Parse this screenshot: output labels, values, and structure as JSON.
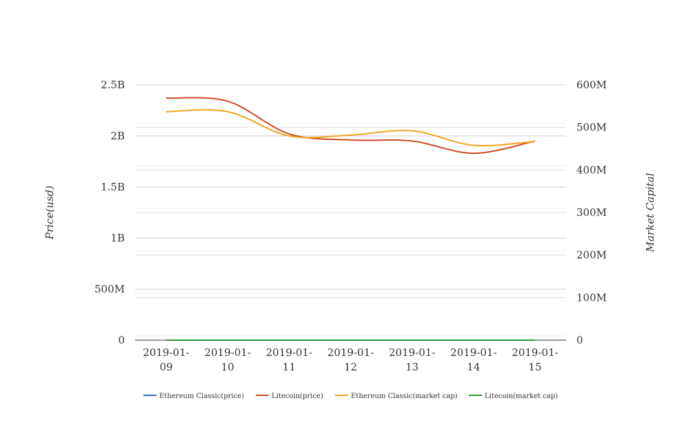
{
  "chart_data": {
    "type": "line",
    "title": "",
    "categories": [
      "2019-01-09",
      "2019-01-10",
      "2019-01-11",
      "2019-01-12",
      "2019-01-13",
      "2019-01-14",
      "2019-01-15"
    ],
    "category_labels": [
      [
        "2019-01-",
        "09"
      ],
      [
        "2019-01-",
        "10"
      ],
      [
        "2019-01-",
        "11"
      ],
      [
        "2019-01-",
        "12"
      ],
      [
        "2019-01-",
        "13"
      ],
      [
        "2019-01-",
        "14"
      ],
      [
        "2019-01-",
        "15"
      ]
    ],
    "y_left": {
      "label": "Price(usd)",
      "min": 0,
      "max": 2500000000,
      "ticks": [
        0,
        500000000,
        1000000000,
        1500000000,
        2000000000,
        2500000000
      ],
      "tick_labels": [
        "0",
        "500M",
        "1B",
        "1.5B",
        "2B",
        "2.5B"
      ]
    },
    "y_right": {
      "label": "Market Capital",
      "min": 0,
      "max": 600000000,
      "ticks": [
        0,
        100000000,
        200000000,
        300000000,
        400000000,
        500000000,
        600000000
      ],
      "tick_labels": [
        "0",
        "100M",
        "200M",
        "300M",
        "400M",
        "500M",
        "600M"
      ]
    },
    "grid": true,
    "legend_position": "bottom",
    "series": [
      {
        "name": "Ethereum Classic(price)",
        "axis": "left",
        "color": "#2e6bc6",
        "values": [
          4.7,
          4.7,
          4.5,
          4.5,
          4.6,
          4.4,
          4.5
        ]
      },
      {
        "name": "Litecoin(price)",
        "axis": "left",
        "color": "#d04a1e",
        "values": [
          2370000000,
          2340000000,
          2020000000,
          1960000000,
          1950000000,
          1830000000,
          1950000000
        ]
      },
      {
        "name": "Ethereum Classic(market cap)",
        "axis": "right",
        "color": "#f0a21c",
        "values": [
          537000000,
          537000000,
          480000000,
          482000000,
          492000000,
          458000000,
          467000000
        ]
      },
      {
        "name": "Litecoin(market cap)",
        "axis": "right",
        "color": "#1f9a2e",
        "values": [
          32,
          32,
          31,
          32,
          33,
          31,
          33
        ]
      }
    ]
  }
}
